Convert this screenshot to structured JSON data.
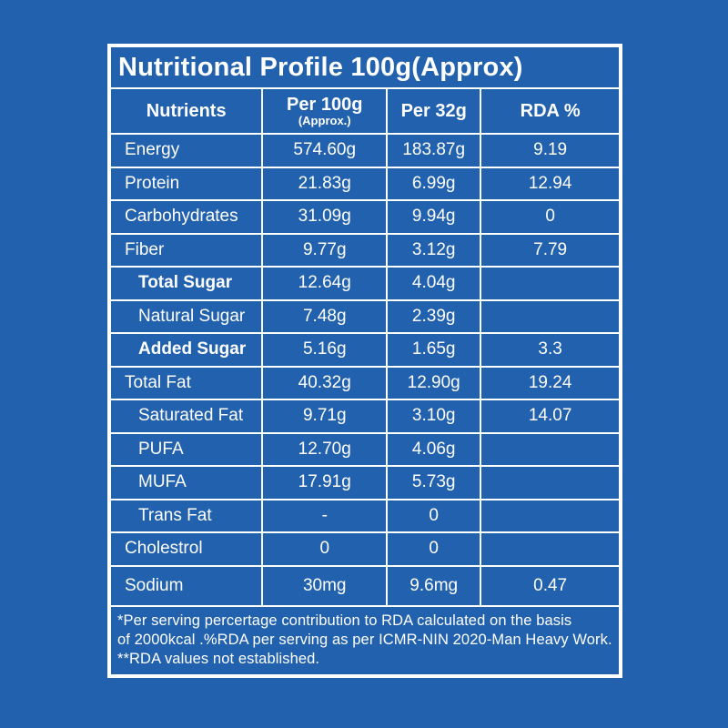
{
  "colors": {
    "background": "#2161ae",
    "border": "#ffffff",
    "text": "#ffffff"
  },
  "title": "Nutritional Profile 100g(Approx)",
  "columns": {
    "nutrients": "Nutrients",
    "per100g": {
      "main": "Per 100g",
      "sub": "(Approx.)"
    },
    "per32g": "Per 32g",
    "rda": "RDA %"
  },
  "table": {
    "rows": [
      {
        "label": "Energy",
        "indent": false,
        "bold": false,
        "tall": false,
        "per100g": "574.60g",
        "per32g": "183.87g",
        "rda": "9.19"
      },
      {
        "label": "Protein",
        "indent": false,
        "bold": false,
        "tall": false,
        "per100g": "21.83g",
        "per32g": "6.99g",
        "rda": "12.94"
      },
      {
        "label": "Carbohydrates",
        "indent": false,
        "bold": false,
        "tall": false,
        "per100g": "31.09g",
        "per32g": "9.94g",
        "rda": "0"
      },
      {
        "label": "Fiber",
        "indent": false,
        "bold": false,
        "tall": false,
        "per100g": "9.77g",
        "per32g": "3.12g",
        "rda": "7.79"
      },
      {
        "label": "Total Sugar",
        "indent": true,
        "bold": true,
        "tall": false,
        "per100g": "12.64g",
        "per32g": "4.04g",
        "rda": ""
      },
      {
        "label": "Natural Sugar",
        "indent": true,
        "bold": false,
        "tall": false,
        "per100g": "7.48g",
        "per32g": "2.39g",
        "rda": ""
      },
      {
        "label": "Added Sugar",
        "indent": true,
        "bold": true,
        "tall": false,
        "per100g": "5.16g",
        "per32g": "1.65g",
        "rda": "3.3"
      },
      {
        "label": "Total Fat",
        "indent": false,
        "bold": false,
        "tall": false,
        "per100g": "40.32g",
        "per32g": "12.90g",
        "rda": "19.24"
      },
      {
        "label": "Saturated Fat",
        "indent": true,
        "bold": false,
        "tall": false,
        "per100g": "9.71g",
        "per32g": "3.10g",
        "rda": "14.07"
      },
      {
        "label": "PUFA",
        "indent": true,
        "bold": false,
        "tall": false,
        "per100g": "12.70g",
        "per32g": "4.06g",
        "rda": ""
      },
      {
        "label": "MUFA",
        "indent": true,
        "bold": false,
        "tall": false,
        "per100g": "17.91g",
        "per32g": "5.73g",
        "rda": ""
      },
      {
        "label": "Trans Fat",
        "indent": true,
        "bold": false,
        "tall": false,
        "per100g": "-",
        "per32g": "0",
        "rda": ""
      },
      {
        "label": "Cholestrol",
        "indent": false,
        "bold": false,
        "tall": false,
        "per100g": "0",
        "per32g": "0",
        "rda": ""
      },
      {
        "label": "Sodium",
        "indent": false,
        "bold": false,
        "tall": true,
        "per100g": "30mg",
        "per32g": "9.6mg",
        "rda": "0.47"
      }
    ]
  },
  "footnotes": [
    "*Per serving percertage contribution to RDA calculated on the basis",
    "of 2000kcal .%RDA per serving as per ICMR-NIN 2020-Man Heavy Work.",
    "**RDA values not established."
  ]
}
